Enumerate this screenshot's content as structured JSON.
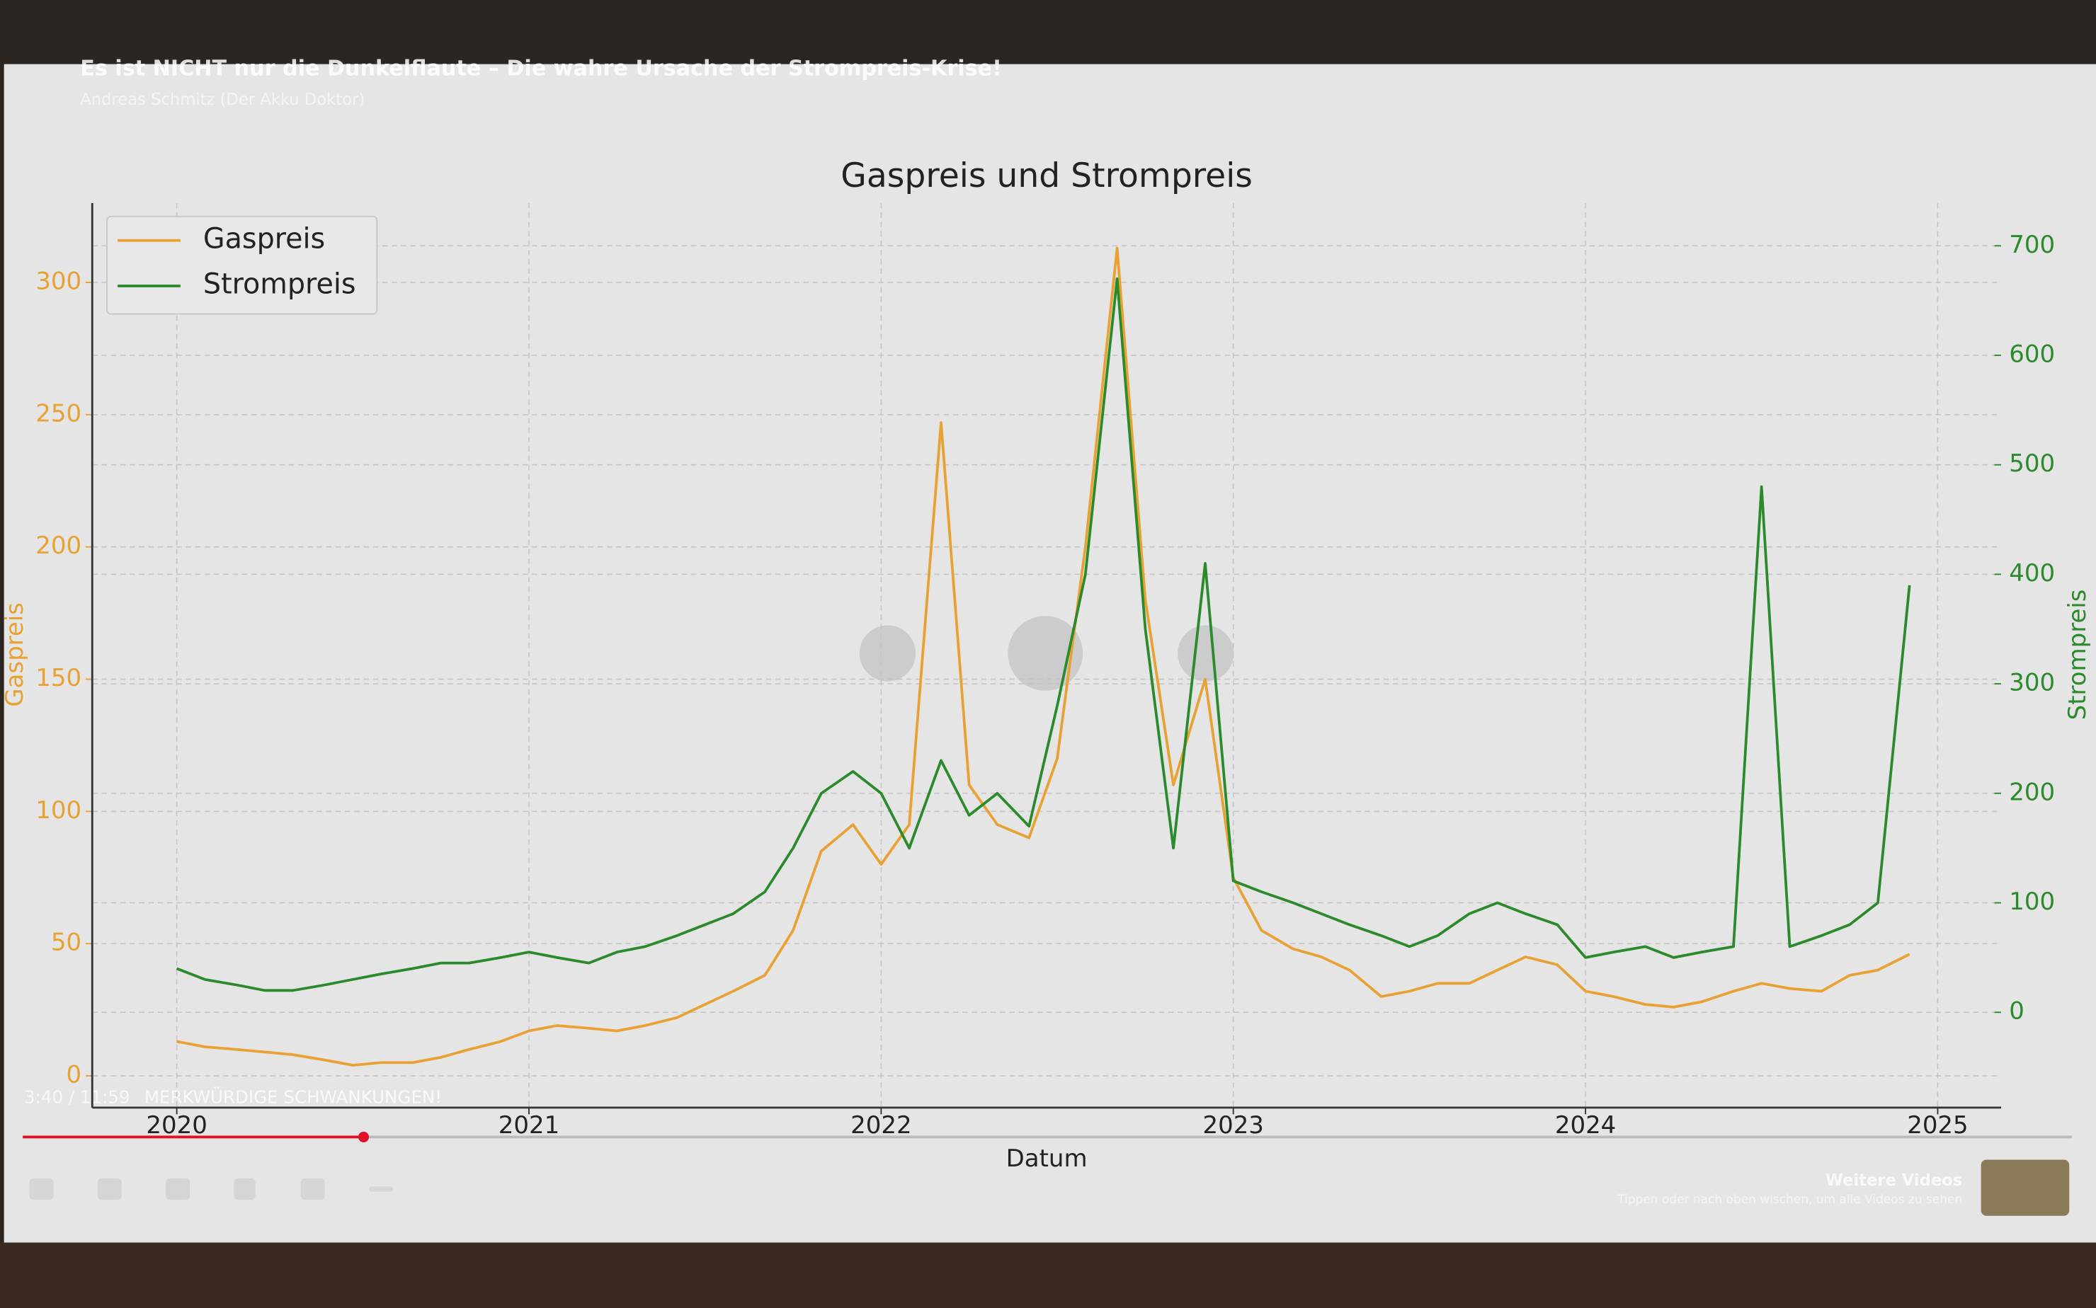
{
  "player": {
    "video_title": "Es ist NICHT nur die Dunkelflaute – Die wahre Ursache der Strompreis-Krise!",
    "channel": "Andreas Schmitz (Der Akku Doktor)",
    "time": "3:40 / 11:59",
    "chapter": "MERKWÜRDIGE SCHWANKUNGEN!",
    "more_videos": "Weitere Videos",
    "more_videos_hint": "Tippen oder nach oben wischen, um alle Videos zu sehen"
  },
  "chart_data": {
    "type": "line",
    "title": "Gaspreis und Strompreis",
    "xlabel": "Datum",
    "ylabel": "Gaspreis",
    "y2label": "Strompreis",
    "x": [
      2020.0,
      2020.08,
      2020.17,
      2020.25,
      2020.33,
      2020.42,
      2020.5,
      2020.58,
      2020.67,
      2020.75,
      2020.83,
      2020.92,
      2021.0,
      2021.08,
      2021.17,
      2021.25,
      2021.33,
      2021.42,
      2021.5,
      2021.58,
      2021.67,
      2021.75,
      2021.83,
      2021.92,
      2022.0,
      2022.08,
      2022.17,
      2022.25,
      2022.33,
      2022.42,
      2022.5,
      2022.58,
      2022.67,
      2022.75,
      2022.83,
      2022.92,
      2023.0,
      2023.08,
      2023.17,
      2023.25,
      2023.33,
      2023.42,
      2023.5,
      2023.58,
      2023.67,
      2023.75,
      2023.83,
      2023.92,
      2024.0,
      2024.08,
      2024.17,
      2024.25,
      2024.33,
      2024.42,
      2024.5,
      2024.58,
      2024.67,
      2024.75,
      2024.83,
      2024.92
    ],
    "series": [
      {
        "name": "Gaspreis",
        "color": "#e8a133",
        "axis": "y",
        "values": [
          13,
          11,
          10,
          9,
          8,
          6,
          4,
          5,
          5,
          7,
          10,
          13,
          17,
          19,
          18,
          17,
          19,
          22,
          27,
          32,
          38,
          55,
          85,
          95,
          80,
          95,
          247,
          110,
          95,
          90,
          120,
          200,
          313,
          180,
          110,
          150,
          75,
          55,
          48,
          45,
          40,
          30,
          32,
          35,
          35,
          40,
          45,
          42,
          32,
          30,
          27,
          26,
          28,
          32,
          35,
          33,
          32,
          38,
          40,
          46
        ]
      },
      {
        "name": "Strompreis",
        "color": "#2b8a2b",
        "axis": "y2",
        "values": [
          40,
          30,
          25,
          20,
          20,
          25,
          30,
          35,
          40,
          45,
          45,
          50,
          55,
          50,
          45,
          55,
          60,
          70,
          80,
          90,
          110,
          150,
          200,
          220,
          200,
          150,
          230,
          180,
          200,
          170,
          280,
          400,
          670,
          350,
          150,
          410,
          120,
          110,
          100,
          90,
          80,
          70,
          60,
          70,
          90,
          100,
          90,
          80,
          50,
          55,
          60,
          50,
          55,
          60,
          480,
          60,
          70,
          80,
          100,
          390
        ]
      }
    ],
    "xlim": [
      2019.76,
      2025.18
    ],
    "xticks": [
      2020,
      2021,
      2022,
      2023,
      2024,
      2025
    ],
    "ylim": [
      -12,
      330
    ],
    "yticks": [
      0,
      50,
      100,
      150,
      200,
      250,
      300
    ],
    "y2lim": [
      -87,
      739
    ],
    "y2ticks": [
      0,
      100,
      200,
      300,
      400,
      500,
      600,
      700
    ],
    "grid": true,
    "legend": "upper left"
  }
}
